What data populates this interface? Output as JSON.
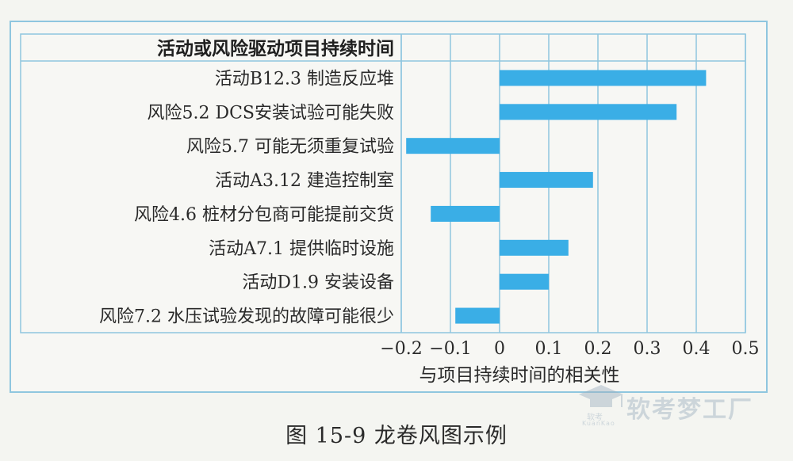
{
  "chart_data": {
    "type": "bar",
    "orientation": "horizontal",
    "header": "活动或风险驱动项目持续时间",
    "xlabel": "与项目持续时间的相关性",
    "categories": [
      "活动B12.3 制造反应堆",
      "风险5.2  DCS安装试验可能失败",
      "风险5.7 可能无须重复试验",
      "活动A3.12 建造控制室",
      "风险4.6 桩材分包商可能提前交货",
      "活动A7.1 提供临时设施",
      "活动D1.9 安装设备",
      "风险7.2 水压试验发现的故障可能很少"
    ],
    "values": [
      0.42,
      0.36,
      -0.19,
      0.19,
      -0.14,
      0.14,
      0.1,
      -0.09
    ],
    "xlim": [
      -0.2,
      0.5
    ],
    "xticks": [
      "−0.2",
      "−0.1",
      "0",
      "0.1",
      "0.2",
      "0.3",
      "0.4",
      "0.5"
    ],
    "bar_color": "#3aaee6",
    "grid_color": "#8fc6df",
    "grid": true
  },
  "caption": "图 15-9    龙卷风图示例",
  "watermark": {
    "main": "软考梦工厂",
    "logo_text": "软考",
    "logo_sub": "KuanKao"
  }
}
